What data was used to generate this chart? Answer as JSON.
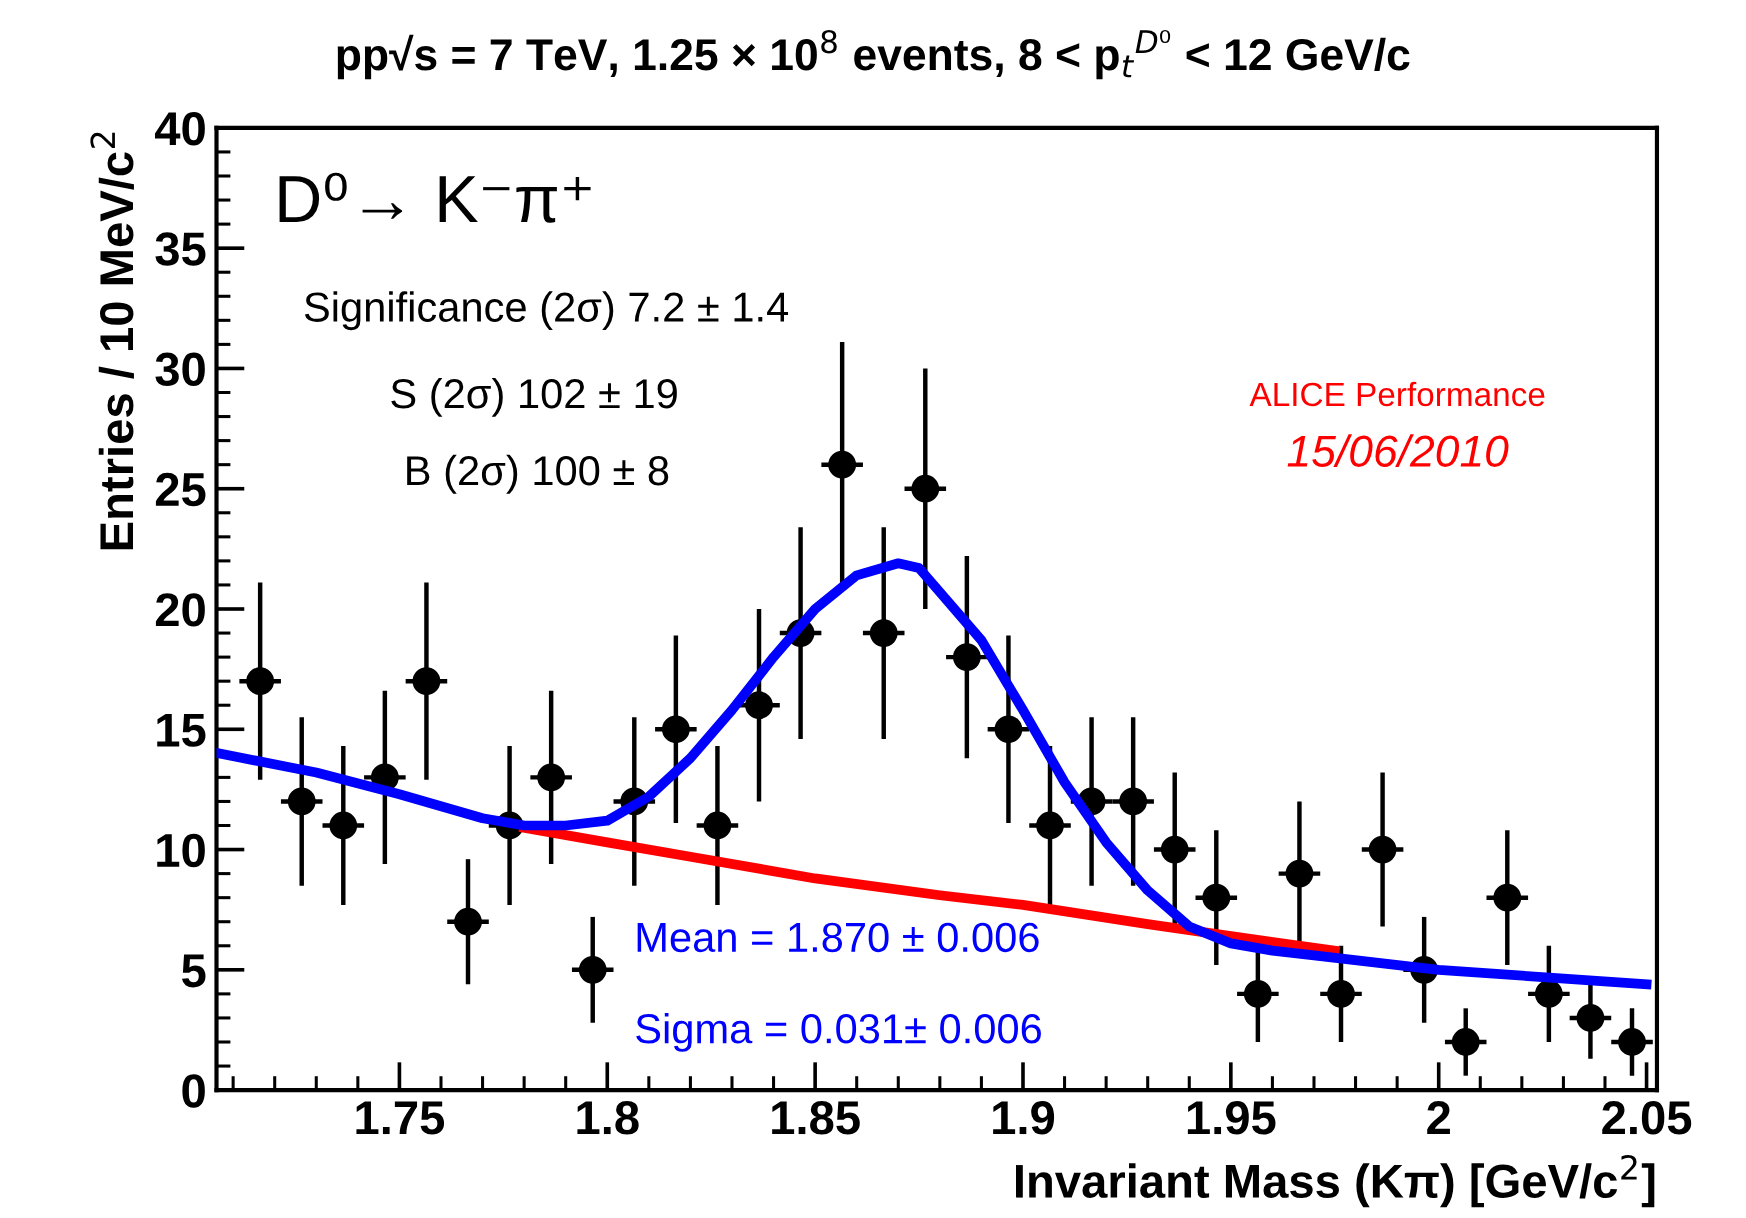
{
  "chart_data": {
    "type": "scatter",
    "title": "pp√s = 7 TeV, 1.25 × 10$^{8}$ events, 8 < p$_{t}$$^{D⁰}$ < 12 GeV/c",
    "xlabel": "Invariant Mass (Kπ) [GeV/c$^{2}$]",
    "ylabel": "Entries / 10 MeV/c$^{2}$",
    "xlim": [
      1.706,
      2.0525
    ],
    "xticks": [
      1.75,
      1.8,
      1.85,
      1.9,
      1.95,
      2,
      2.05
    ],
    "ylim": [
      0,
      40
    ],
    "yticks": [
      0,
      5,
      10,
      15,
      20,
      25,
      30,
      35,
      40
    ],
    "grid": false,
    "series": [
      {
        "color": "#000000",
        "marker": "circle",
        "x": [
          1.7165,
          1.7265,
          1.7365,
          1.7465,
          1.7565,
          1.7665,
          1.7765,
          1.7865,
          1.7965,
          1.8065,
          1.8165,
          1.8265,
          1.8365,
          1.8465,
          1.8565,
          1.8665,
          1.8765,
          1.8865,
          1.8965,
          1.9065,
          1.9165,
          1.9265,
          1.9365,
          1.9465,
          1.9565,
          1.9665,
          1.9765,
          1.9865,
          1.9965,
          2.0065,
          2.0165,
          2.0265,
          2.0365,
          2.0465
        ],
        "values": [
          17,
          12,
          11,
          13,
          17,
          7,
          11,
          13,
          5,
          12,
          15,
          11,
          16,
          19,
          26,
          19,
          25,
          18,
          15,
          11,
          12,
          12,
          10,
          8,
          4,
          9,
          4,
          10,
          5,
          2,
          8,
          4,
          3,
          2
        ],
        "errors": [
          4.1,
          3.5,
          3.3,
          3.6,
          4.1,
          2.6,
          3.3,
          3.6,
          2.2,
          3.5,
          3.9,
          3.3,
          4,
          4.4,
          5.1,
          4.4,
          5,
          4.2,
          3.9,
          3.3,
          3.5,
          3.5,
          3.2,
          2.8,
          2,
          3,
          2,
          3.2,
          2.2,
          1.4,
          2.8,
          2,
          1.7,
          1.4
        ],
        "xerrors": [
          0.005,
          0.005,
          0.005,
          0.005,
          0.005,
          0.005,
          0.005,
          0.005,
          0.005,
          0.005,
          0.005,
          0.005,
          0.005,
          0.005,
          0.005,
          0.005,
          0.005,
          0.005,
          0.005,
          0.005,
          0.005,
          0.005,
          0.005,
          0.005,
          0.005,
          0.005,
          0.005,
          0.005,
          0.005,
          0.005,
          0.005,
          0.005,
          0.005,
          0.005
        ]
      },
      {
        "type": "line",
        "color": "#ff0000",
        "line_style": "solid",
        "x": [
          1.78,
          1.8,
          1.82,
          1.85,
          1.88,
          1.9,
          1.93,
          1.95,
          1.975
        ],
        "values": [
          10.9,
          10.3,
          9.7,
          8.8,
          8.1,
          7.7,
          6.9,
          6.4,
          5.8
        ]
      },
      {
        "type": "line",
        "color": "#0000ff",
        "line_style": "solid",
        "x": [
          1.7065,
          1.73,
          1.75,
          1.77,
          1.78,
          1.79,
          1.8,
          1.81,
          1.82,
          1.83,
          1.84,
          1.85,
          1.86,
          1.87,
          1.875,
          1.88,
          1.89,
          1.9,
          1.91,
          1.92,
          1.93,
          1.94,
          1.95,
          1.96,
          1.97,
          2.0,
          2.05
        ],
        "values": [
          14,
          13.2,
          12.3,
          11.3,
          11.0,
          11.0,
          11.2,
          12.2,
          13.8,
          15.8,
          18.0,
          20.0,
          21.4,
          21.9,
          21.7,
          20.7,
          18.7,
          15.8,
          12.8,
          10.3,
          8.3,
          6.8,
          6.1,
          5.8,
          5.6,
          5.0,
          4.4
        ]
      }
    ],
    "annotations": [
      "D⁰→ K⁻π⁺",
      "Significance (2σ) 7.2 ± 1.4",
      "S (2σ) 102 ± 19",
      "B (2σ) 100 ± 8",
      "ALICE Performance",
      "15/06/2010",
      "Mean = 1.870 ± 0.006",
      "Sigma = 0.031± 0.006"
    ]
  }
}
